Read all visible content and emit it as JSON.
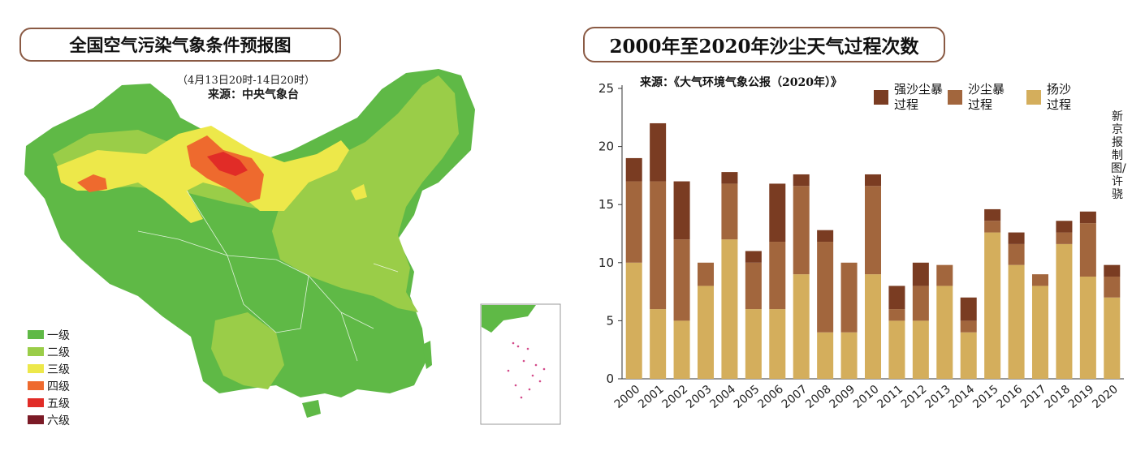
{
  "map": {
    "title": "全国空气污染气象条件预报图",
    "subtitle": "（4月13日20时-14日20时）",
    "source": "来源：中央气象台",
    "legend": [
      {
        "label": "一级",
        "color": "#5fb946"
      },
      {
        "label": "二级",
        "color": "#9acd48"
      },
      {
        "label": "三级",
        "color": "#ede84a"
      },
      {
        "label": "四级",
        "color": "#ee6a2e"
      },
      {
        "label": "五级",
        "color": "#e12c27"
      },
      {
        "label": "六级",
        "color": "#7b1a26"
      }
    ]
  },
  "chart": {
    "title": "2000年至2020年沙尘天气过程次数",
    "credit": "新京报制图/许骁"
  },
  "chart_data": {
    "type": "bar",
    "stacked": true,
    "title": "2000年至2020年沙尘天气过程次数",
    "source": "来源：《大气环境气象公报（2020年）》",
    "categories": [
      "2000",
      "2001",
      "2002",
      "2003",
      "2004",
      "2005",
      "2006",
      "2007",
      "2008",
      "2009",
      "2010",
      "2011",
      "2012",
      "2013",
      "2014",
      "2015",
      "2016",
      "2017",
      "2018",
      "2019",
      "2020"
    ],
    "series": [
      {
        "name": "扬沙过程",
        "color": "#d4ae5c",
        "values": [
          10,
          6,
          5,
          8,
          12,
          6,
          6,
          9,
          4,
          4,
          9,
          5,
          5,
          8,
          4,
          12.6,
          9.8,
          8,
          11.6,
          8.8,
          7
        ]
      },
      {
        "name": "沙尘暴过程",
        "color": "#a2663d",
        "values": [
          7,
          11,
          7,
          2,
          4.8,
          4,
          5.8,
          7.6,
          7.8,
          6,
          7.6,
          1,
          3,
          1.8,
          1,
          1,
          1.8,
          1,
          1,
          4.6,
          1.8
        ]
      },
      {
        "name": "强沙尘暴过程",
        "color": "#7a3c22",
        "values": [
          2,
          5,
          5,
          0,
          1,
          1,
          5,
          1,
          1,
          0,
          1,
          2,
          2,
          0,
          2,
          1,
          1,
          0,
          1,
          1,
          1
        ]
      }
    ],
    "legend_labels": [
      [
        "强沙尘暴",
        "过程"
      ],
      [
        "沙尘暴",
        "过程"
      ],
      [
        "扬沙",
        "过程"
      ]
    ],
    "yticks": [
      0,
      5,
      10,
      15,
      20,
      25
    ],
    "ylim": [
      0,
      25
    ],
    "xlabel": "",
    "ylabel": ""
  }
}
